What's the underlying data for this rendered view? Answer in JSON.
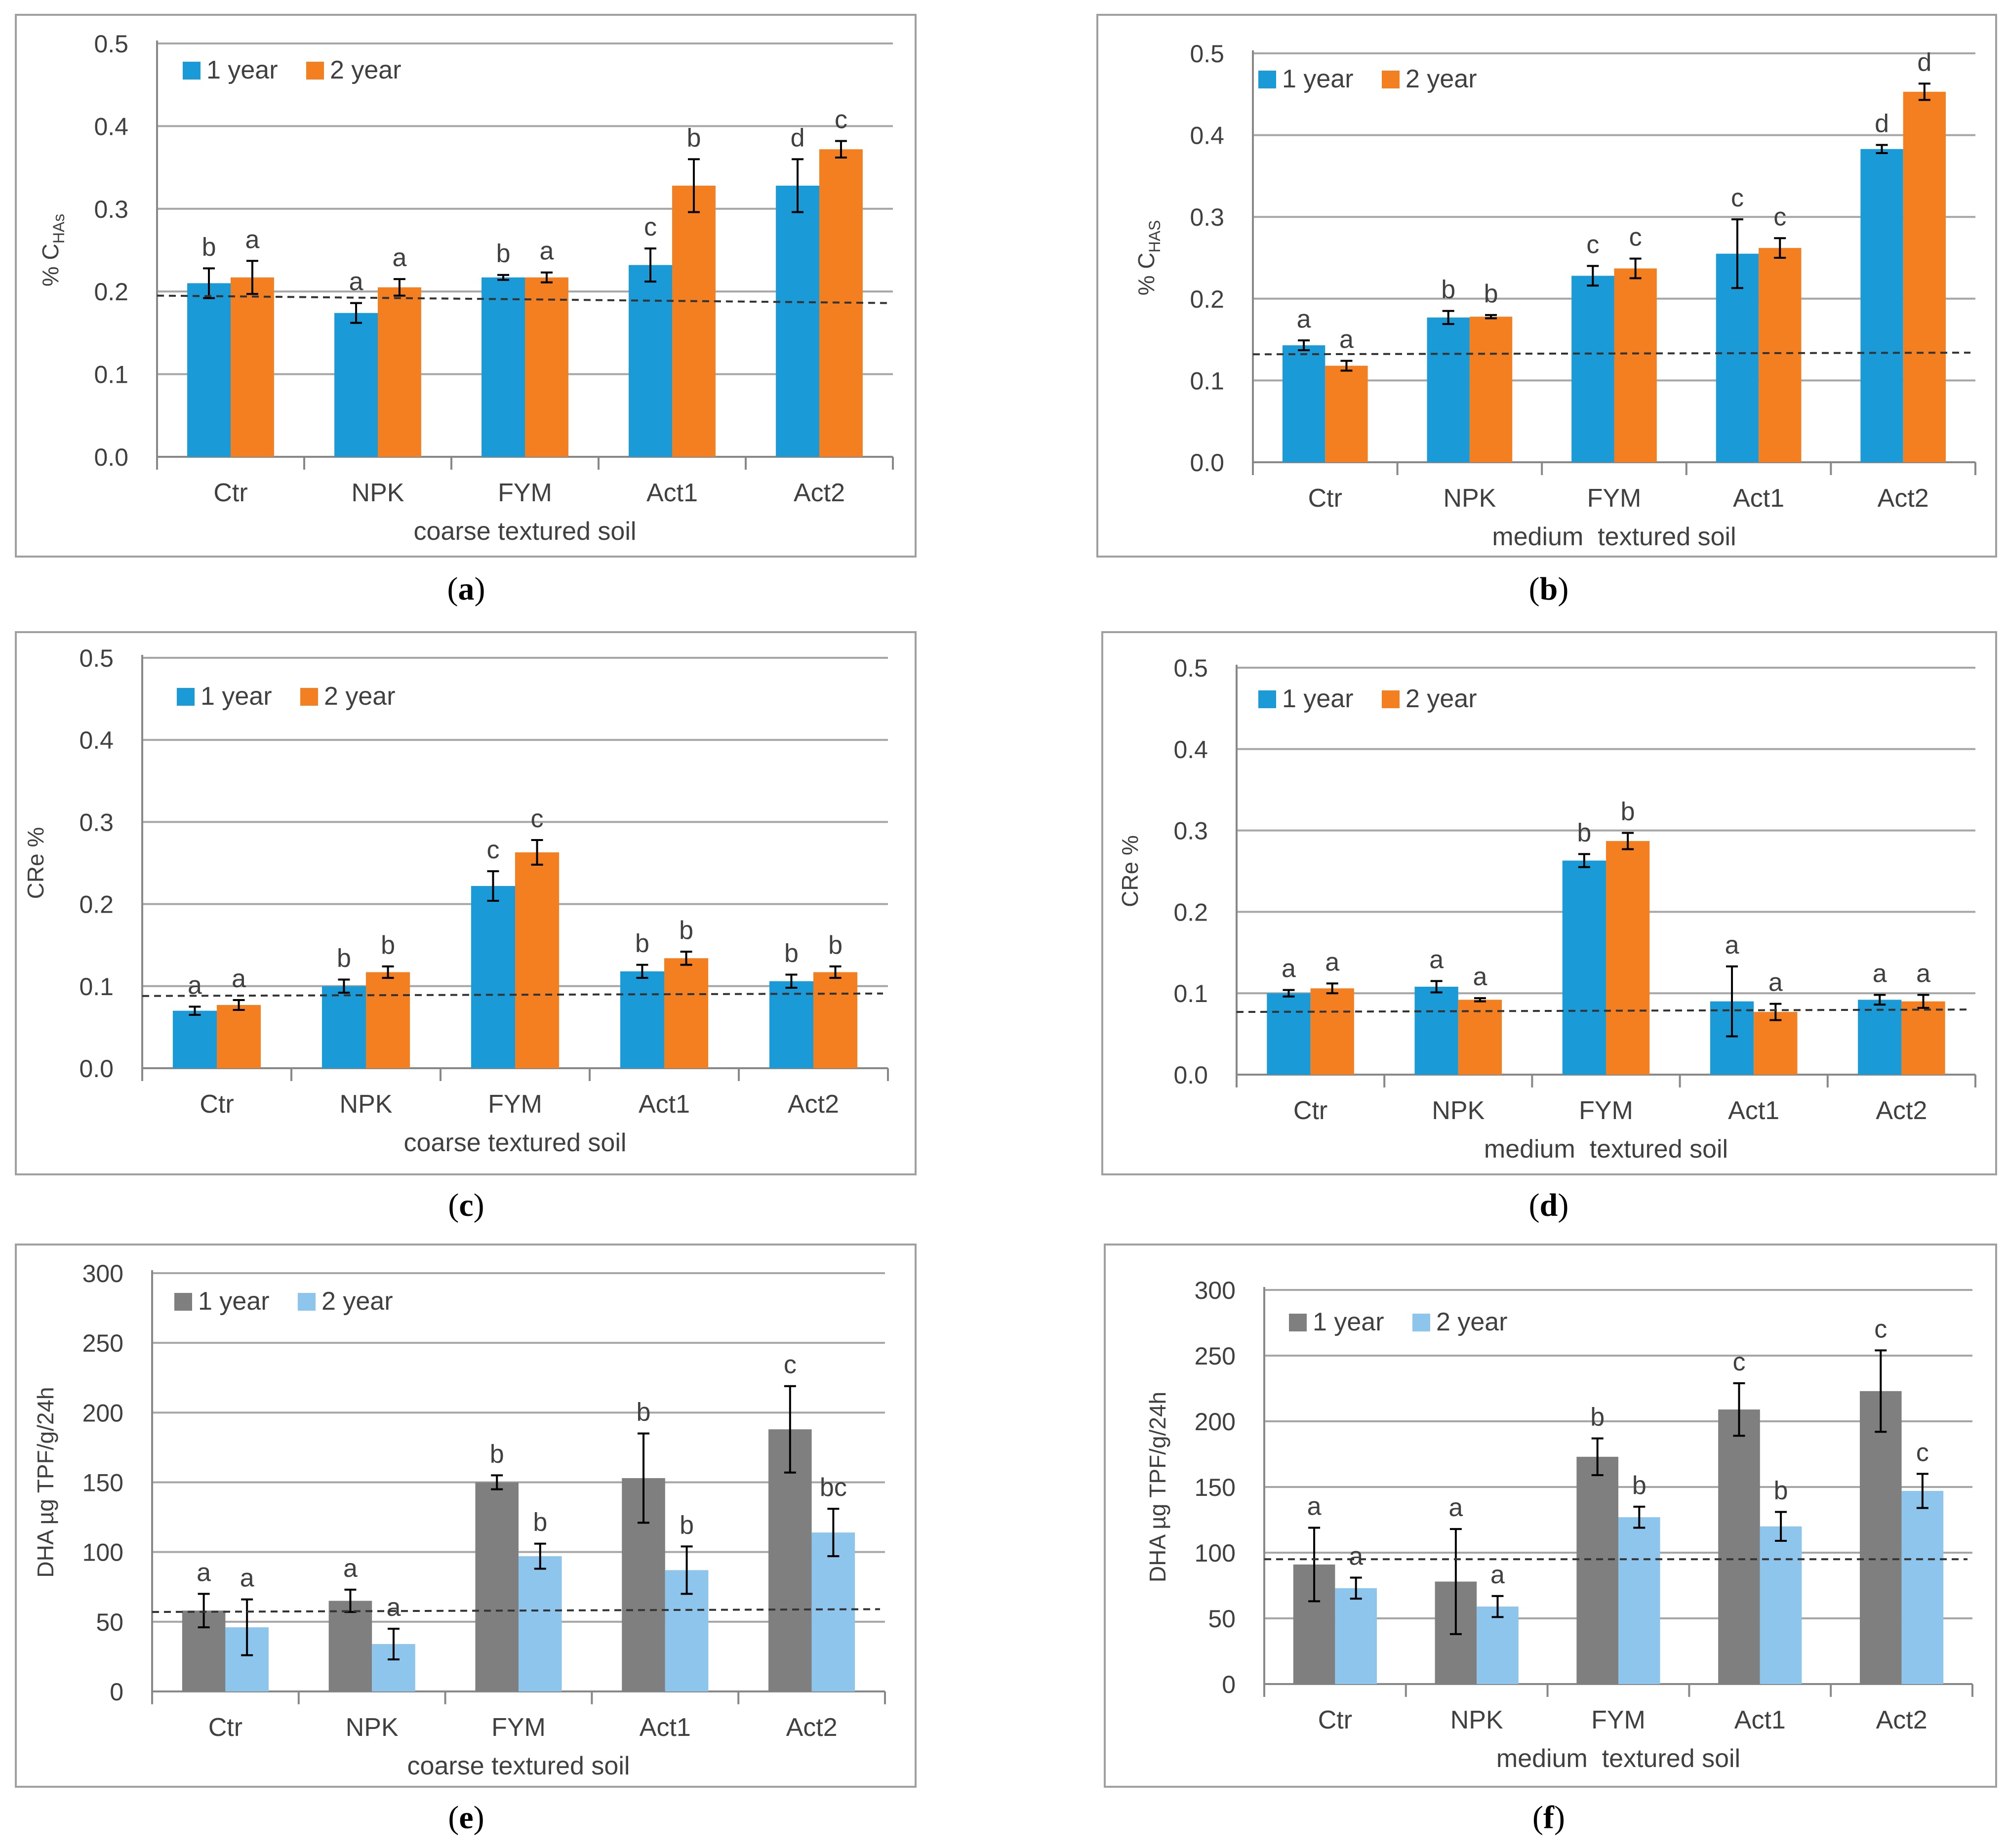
{
  "figure_labels": [
    "(a)",
    "(b)",
    "(c)",
    "(d)",
    "(e)",
    "(f)"
  ],
  "colors": {
    "blue": "#1a9ad7",
    "orange": "#f47f20",
    "dark_gray": "#7f7f7f",
    "light_blue": "#8ec5ec",
    "grid": "#a6a6a6",
    "axis": "#888888",
    "frame": "#a0a0a0",
    "text": "#404040",
    "dashed": "#333333"
  },
  "chart_data": [
    {
      "id": "a",
      "type": "bar",
      "panel_label": "(a)",
      "title": "",
      "xlabel": "coarse textured soil",
      "ylabel": "% C",
      "ylabel_sub": "HAs",
      "ylim": [
        0,
        0.5
      ],
      "ytick_step": 0.1,
      "ytick_decimals": 1,
      "grid": true,
      "legend": "top-left",
      "categories": [
        "Ctr",
        "NPK",
        "FYM",
        "Act1",
        "Act2"
      ],
      "series": [
        {
          "name": "1 year",
          "color": "#1a9ad7",
          "values": [
            0.21,
            0.174,
            0.217,
            0.232,
            0.328
          ],
          "errors": [
            0.018,
            0.012,
            0.003,
            0.02,
            0.032
          ],
          "letters": [
            "b",
            "a",
            "b",
            "c",
            "d"
          ]
        },
        {
          "name": "2 year",
          "color": "#f47f20",
          "values": [
            0.217,
            0.205,
            0.217,
            0.328,
            0.372
          ],
          "errors": [
            0.02,
            0.01,
            0.006,
            0.032,
            0.01
          ],
          "letters": [
            "a",
            "a",
            "a",
            "b",
            "c"
          ]
        }
      ],
      "baseline": [
        0.195,
        0.186
      ]
    },
    {
      "id": "b",
      "type": "bar",
      "panel_label": "(b)",
      "title": "",
      "xlabel": "medium  textured soil",
      "ylabel": "% C",
      "ylabel_sub": "HAS",
      "ylim": [
        0,
        0.5
      ],
      "ytick_step": 0.1,
      "ytick_decimals": 1,
      "grid": true,
      "legend": "top-left",
      "categories": [
        "Ctr",
        "NPK",
        "FYM",
        "Act1",
        "Act2"
      ],
      "series": [
        {
          "name": "1 year",
          "color": "#1a9ad7",
          "values": [
            0.143,
            0.177,
            0.228,
            0.255,
            0.383
          ],
          "errors": [
            0.006,
            0.008,
            0.012,
            0.042,
            0.005
          ],
          "letters": [
            "a",
            "b",
            "c",
            "c",
            "d"
          ]
        },
        {
          "name": "2 year",
          "color": "#f47f20",
          "values": [
            0.118,
            0.178,
            0.237,
            0.262,
            0.453
          ],
          "errors": [
            0.006,
            0.002,
            0.012,
            0.012,
            0.01
          ],
          "letters": [
            "a",
            "b",
            "c",
            "c",
            "d"
          ]
        }
      ],
      "baseline": [
        0.132,
        0.134
      ]
    },
    {
      "id": "c",
      "type": "bar",
      "panel_label": "(c)",
      "title": "",
      "xlabel": "coarse textured soil",
      "ylabel": "CRe %",
      "ylabel_sub": "",
      "ylim": [
        0,
        0.5
      ],
      "ytick_step": 0.1,
      "ytick_decimals": 1,
      "grid": true,
      "legend": "top-left",
      "categories": [
        "Ctr",
        "NPK",
        "FYM",
        "Act1",
        "Act2"
      ],
      "series": [
        {
          "name": "1 year",
          "color": "#1a9ad7",
          "values": [
            0.07,
            0.1,
            0.222,
            0.118,
            0.106
          ],
          "errors": [
            0.005,
            0.008,
            0.018,
            0.008,
            0.008
          ],
          "letters": [
            "a",
            "b",
            "c",
            "b",
            "b"
          ]
        },
        {
          "name": "2 year",
          "color": "#f47f20",
          "values": [
            0.077,
            0.117,
            0.263,
            0.134,
            0.117
          ],
          "errors": [
            0.006,
            0.007,
            0.015,
            0.008,
            0.007
          ],
          "letters": [
            "a",
            "b",
            "c",
            "b",
            "b"
          ]
        }
      ],
      "baseline": [
        0.088,
        0.091
      ]
    },
    {
      "id": "d",
      "type": "bar",
      "panel_label": "(d)",
      "title": "",
      "xlabel": "medium  textured soil",
      "ylabel": "CRe %",
      "ylabel_sub": "",
      "ylim": [
        0,
        0.5
      ],
      "ytick_step": 0.1,
      "ytick_decimals": 1,
      "grid": true,
      "legend": "top-left",
      "categories": [
        "Ctr",
        "NPK",
        "FYM",
        "Act1",
        "Act2"
      ],
      "series": [
        {
          "name": "1 year",
          "color": "#1a9ad7",
          "values": [
            0.1,
            0.108,
            0.263,
            0.09,
            0.092
          ],
          "errors": [
            0.004,
            0.007,
            0.008,
            0.043,
            0.006
          ],
          "letters": [
            "a",
            "a",
            "b",
            "a",
            "a"
          ]
        },
        {
          "name": "2 year",
          "color": "#f47f20",
          "values": [
            0.106,
            0.092,
            0.287,
            0.077,
            0.09
          ],
          "errors": [
            0.006,
            0.002,
            0.01,
            0.01,
            0.008
          ],
          "letters": [
            "a",
            "a",
            "b",
            "a",
            "a"
          ]
        }
      ],
      "baseline": [
        0.077,
        0.08
      ]
    },
    {
      "id": "e",
      "type": "bar",
      "panel_label": "(e)",
      "title": "",
      "xlabel": "coarse textured soil",
      "ylabel": "DHA µg TPF/g/24h",
      "ylabel_sub": "",
      "ylim": [
        0,
        300
      ],
      "ytick_step": 50,
      "ytick_decimals": 0,
      "grid": true,
      "legend": "top-left",
      "categories": [
        "Ctr",
        "NPK",
        "FYM",
        "Act1",
        "Act2"
      ],
      "series": [
        {
          "name": "1 year",
          "color": "#7f7f7f",
          "values": [
            58,
            65,
            150,
            153,
            188
          ],
          "errors": [
            12,
            8,
            5,
            32,
            31
          ],
          "letters": [
            "a",
            "a",
            "b",
            "b",
            "c"
          ]
        },
        {
          "name": "2 year",
          "color": "#8ec5ec",
          "values": [
            46,
            34,
            97,
            87,
            114
          ],
          "errors": [
            20,
            11,
            9,
            17,
            17
          ],
          "letters": [
            "a",
            "a",
            "b",
            "b",
            "bc"
          ]
        }
      ],
      "baseline": [
        57,
        59
      ]
    },
    {
      "id": "f",
      "type": "bar",
      "panel_label": "(f)",
      "title": "",
      "xlabel": "medium  textured soil",
      "ylabel": "DHA µg TPF/g/24h",
      "ylabel_sub": "",
      "ylim": [
        0,
        300
      ],
      "ytick_step": 50,
      "ytick_decimals": 0,
      "grid": true,
      "legend": "top-left",
      "categories": [
        "Ctr",
        "NPK",
        "FYM",
        "Act1",
        "Act2"
      ],
      "series": [
        {
          "name": "1 year",
          "color": "#7f7f7f",
          "values": [
            91,
            78,
            173,
            209,
            223
          ],
          "errors": [
            28,
            40,
            14,
            20,
            31
          ],
          "letters": [
            "a",
            "a",
            "b",
            "c",
            "c"
          ]
        },
        {
          "name": "2 year",
          "color": "#8ec5ec",
          "values": [
            73,
            59,
            127,
            120,
            147
          ],
          "errors": [
            8,
            8,
            8,
            11,
            13
          ],
          "letters": [
            "a",
            "a",
            "b",
            "b",
            "c"
          ]
        }
      ],
      "baseline": [
        95,
        95
      ]
    }
  ]
}
